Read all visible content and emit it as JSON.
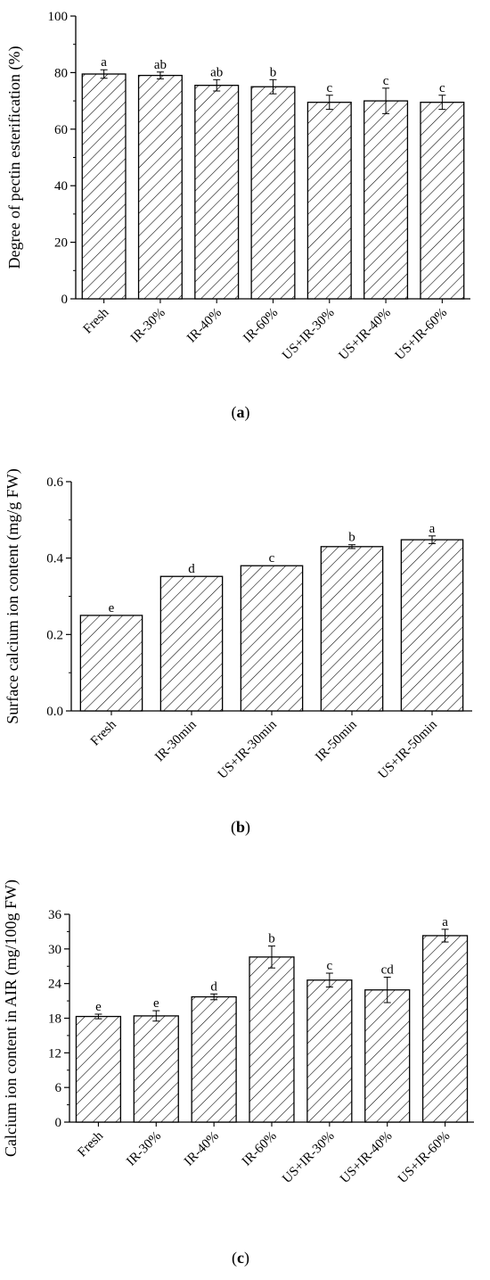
{
  "colors": {
    "bar_fill": "#ffffff",
    "bar_stroke": "#000000",
    "hatch": "#000000"
  },
  "chart_data": [
    {
      "type": "bar",
      "caption_open": "(",
      "caption_letter": "a",
      "caption_close": ")",
      "title": "",
      "xlabel": "",
      "ylabel": "Degree of pectin esterification (%)",
      "ylim": [
        0,
        100
      ],
      "yticks": [
        "0",
        "20",
        "40",
        "60",
        "80",
        "100"
      ],
      "categories": [
        "Fresh",
        "IR-30%",
        "IR-40%",
        "IR-60%",
        "US+IR-30%",
        "US+IR-40%",
        "US+IR-60%"
      ],
      "values": [
        79.5,
        79.0,
        75.5,
        75.0,
        69.5,
        70.0,
        69.5
      ],
      "errors": [
        1.5,
        1.2,
        2.0,
        2.5,
        2.5,
        4.5,
        2.5
      ],
      "significance": [
        "a",
        "ab",
        "ab",
        "b",
        "c",
        "c",
        "c"
      ],
      "grid": false,
      "hatch": "diagonal"
    },
    {
      "type": "bar",
      "caption_open": "(",
      "caption_letter": "b",
      "caption_close": ")",
      "title": "",
      "xlabel": "",
      "ylabel": "Surface calcium ion content (mg/g FW)",
      "ylim": [
        0,
        0.6
      ],
      "yticks": [
        "0.0",
        "0.2",
        "0.4",
        "0.6"
      ],
      "categories": [
        "Fresh",
        "IR-30min",
        "US+IR-30min",
        "IR-50min",
        "US+IR-50min"
      ],
      "values": [
        0.25,
        0.352,
        0.38,
        0.43,
        0.448
      ],
      "errors": [
        0.0,
        0.0,
        0.0,
        0.005,
        0.01
      ],
      "significance": [
        "e",
        "d",
        "c",
        "b",
        "a"
      ],
      "grid": false,
      "hatch": "diagonal"
    },
    {
      "type": "bar",
      "caption_open": "(",
      "caption_letter": "c",
      "caption_close": ")",
      "title": "",
      "xlabel": "",
      "ylabel": "Calcium ion content in AIR (mg/100g FW)",
      "ylim": [
        0,
        36
      ],
      "yticks": [
        "0",
        "6",
        "12",
        "18",
        "24",
        "30",
        "36"
      ],
      "categories": [
        "Fresh",
        "IR-30%",
        "IR-40%",
        "IR-60%",
        "US+IR-30%",
        "US+IR-40%",
        "US+IR-60%"
      ],
      "values": [
        18.3,
        18.4,
        21.7,
        28.6,
        24.6,
        22.9,
        32.3
      ],
      "errors": [
        0.4,
        0.9,
        0.5,
        1.9,
        1.2,
        2.2,
        1.1
      ],
      "significance": [
        "e",
        "e",
        "d",
        "b",
        "c",
        "cd",
        "a"
      ],
      "grid": false,
      "hatch": "diagonal"
    }
  ]
}
